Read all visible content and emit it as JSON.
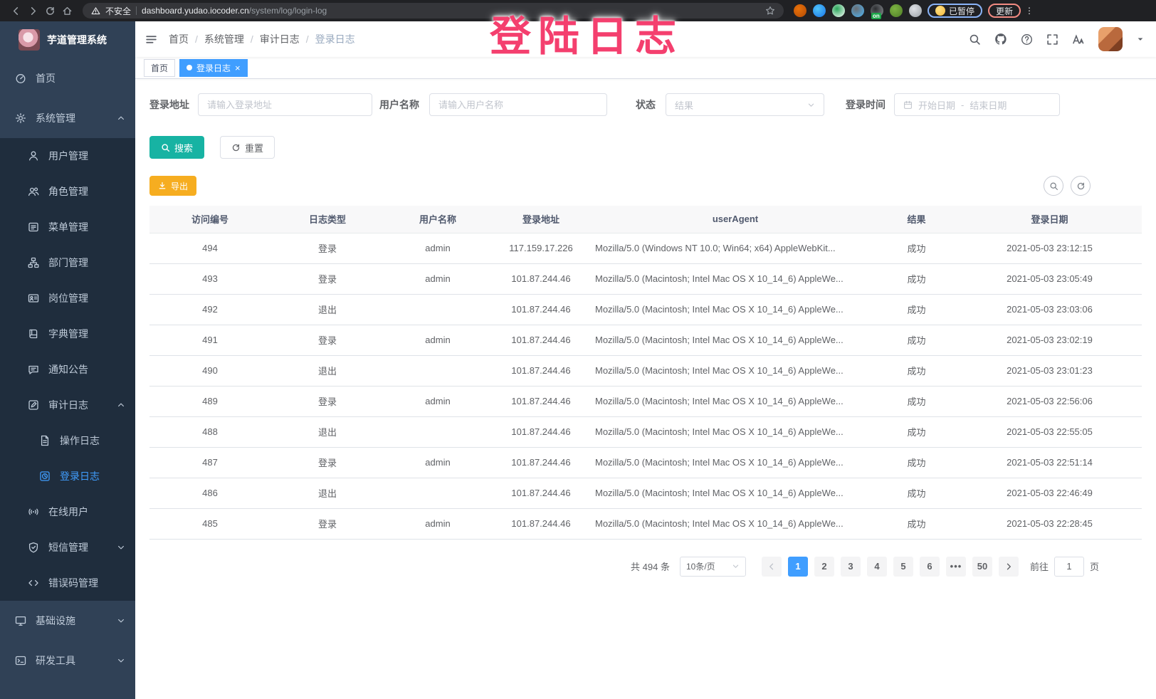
{
  "browser": {
    "security_label": "不安全",
    "url_domain": "dashboard.yudao.iocoder.cn",
    "url_path": "/system/log/login-log",
    "extensions": [
      {
        "name": "extension-orange-icon",
        "color": "#e8710a",
        "inner": "#b24b05"
      },
      {
        "name": "extension-blue-gem-icon",
        "color": "#4fc3f7",
        "inner": "#1a73e8"
      },
      {
        "name": "extension-green-check-icon",
        "color": "#2aa75a",
        "inner": "#ffffff"
      },
      {
        "name": "extension-grid-icon",
        "color": "#6a6d72",
        "inner": "#4db6f7"
      },
      {
        "name": "extension-list-on-icon",
        "color": "#2b2d30",
        "inner": "#8f9398",
        "badge": "on"
      },
      {
        "name": "extension-sprout-icon",
        "color": "#7cb342",
        "inner": "#4f7d27"
      },
      {
        "name": "extension-puzzle-icon",
        "color": "#dfe1e5",
        "inner": "#9aa0a6"
      }
    ],
    "profile_status": "已暂停",
    "update_label": "更新"
  },
  "overlay_text": "登陆日志",
  "sidebar": {
    "title": "芋道管理系统",
    "items": [
      {
        "name": "home",
        "label": "首页",
        "icon": "dashboard-icon",
        "level": 0
      },
      {
        "name": "system-management",
        "label": "系统管理",
        "icon": "gear-icon",
        "level": 0,
        "chevron": "up"
      },
      {
        "name": "user-management",
        "label": "用户管理",
        "icon": "user-icon",
        "level": 1,
        "submenu": true
      },
      {
        "name": "role-management",
        "label": "角色管理",
        "icon": "users-icon",
        "level": 1,
        "submenu": true
      },
      {
        "name": "menu-management",
        "label": "菜单管理",
        "icon": "menu-list-icon",
        "level": 1,
        "submenu": true
      },
      {
        "name": "dept-management",
        "label": "部门管理",
        "icon": "org-tree-icon",
        "level": 1,
        "submenu": true
      },
      {
        "name": "post-management",
        "label": "岗位管理",
        "icon": "id-card-icon",
        "level": 1,
        "submenu": true
      },
      {
        "name": "dict-management",
        "label": "字典管理",
        "icon": "book-icon",
        "level": 1,
        "submenu": true
      },
      {
        "name": "notice-announcement",
        "label": "通知公告",
        "icon": "announcement-icon",
        "level": 1,
        "submenu": true
      },
      {
        "name": "audit-log",
        "label": "审计日志",
        "icon": "edit-square-icon",
        "level": 1,
        "submenu": true,
        "chevron": "up"
      },
      {
        "name": "operation-log",
        "label": "操作日志",
        "icon": "document-icon",
        "level": 2,
        "submenu": true
      },
      {
        "name": "login-log",
        "label": "登录日志",
        "icon": "clock-square-icon",
        "level": 2,
        "submenu": true,
        "active": true
      },
      {
        "name": "online-users",
        "label": "在线用户",
        "icon": "broadcast-icon",
        "level": 1,
        "submenu": true
      },
      {
        "name": "sms-management",
        "label": "短信管理",
        "icon": "shield-check-icon",
        "level": 1,
        "submenu": true,
        "chevron": "down"
      },
      {
        "name": "error-code-management",
        "label": "错误码管理",
        "icon": "code-icon",
        "level": 1,
        "submenu": true
      },
      {
        "name": "infrastructure",
        "label": "基础设施",
        "icon": "monitor-icon",
        "level": 0,
        "chevron": "down"
      },
      {
        "name": "dev-tools",
        "label": "研发工具",
        "icon": "terminal-icon",
        "level": 0,
        "chevron": "down"
      }
    ]
  },
  "breadcrumb": [
    "首页",
    "系统管理",
    "审计日志",
    "登录日志"
  ],
  "tags": [
    {
      "label": "首页",
      "active": false,
      "closable": false
    },
    {
      "label": "登录日志",
      "active": true,
      "closable": true
    }
  ],
  "filters": {
    "login_address_label": "登录地址",
    "login_address_placeholder": "请输入登录地址",
    "username_label": "用户名称",
    "username_placeholder": "请输入用户名称",
    "status_label": "状态",
    "status_placeholder": "结果",
    "login_time_label": "登录时间",
    "start_placeholder": "开始日期",
    "range_separator": "-",
    "end_placeholder": "结束日期",
    "search_label": "搜索",
    "reset_label": "重置"
  },
  "toolbar": {
    "export_label": "导出"
  },
  "table": {
    "headers": [
      "访问编号",
      "日志类型",
      "用户名称",
      "登录地址",
      "userAgent",
      "结果",
      "登录日期"
    ],
    "rows": [
      [
        "494",
        "登录",
        "admin",
        "117.159.17.226",
        "Mozilla/5.0 (Windows NT 10.0; Win64; x64) AppleWebKit...",
        "成功",
        "2021-05-03 23:12:15"
      ],
      [
        "493",
        "登录",
        "admin",
        "101.87.244.46",
        "Mozilla/5.0 (Macintosh; Intel Mac OS X 10_14_6) AppleWe...",
        "成功",
        "2021-05-03 23:05:49"
      ],
      [
        "492",
        "退出",
        "",
        "101.87.244.46",
        "Mozilla/5.0 (Macintosh; Intel Mac OS X 10_14_6) AppleWe...",
        "成功",
        "2021-05-03 23:03:06"
      ],
      [
        "491",
        "登录",
        "admin",
        "101.87.244.46",
        "Mozilla/5.0 (Macintosh; Intel Mac OS X 10_14_6) AppleWe...",
        "成功",
        "2021-05-03 23:02:19"
      ],
      [
        "490",
        "退出",
        "",
        "101.87.244.46",
        "Mozilla/5.0 (Macintosh; Intel Mac OS X 10_14_6) AppleWe...",
        "成功",
        "2021-05-03 23:01:23"
      ],
      [
        "489",
        "登录",
        "admin",
        "101.87.244.46",
        "Mozilla/5.0 (Macintosh; Intel Mac OS X 10_14_6) AppleWe...",
        "成功",
        "2021-05-03 22:56:06"
      ],
      [
        "488",
        "退出",
        "",
        "101.87.244.46",
        "Mozilla/5.0 (Macintosh; Intel Mac OS X 10_14_6) AppleWe...",
        "成功",
        "2021-05-03 22:55:05"
      ],
      [
        "487",
        "登录",
        "admin",
        "101.87.244.46",
        "Mozilla/5.0 (Macintosh; Intel Mac OS X 10_14_6) AppleWe...",
        "成功",
        "2021-05-03 22:51:14"
      ],
      [
        "486",
        "退出",
        "",
        "101.87.244.46",
        "Mozilla/5.0 (Macintosh; Intel Mac OS X 10_14_6) AppleWe...",
        "成功",
        "2021-05-03 22:46:49"
      ],
      [
        "485",
        "登录",
        "admin",
        "101.87.244.46",
        "Mozilla/5.0 (Macintosh; Intel Mac OS X 10_14_6) AppleWe...",
        "成功",
        "2021-05-03 22:28:45"
      ]
    ]
  },
  "pagination": {
    "total_text": "共 494 条",
    "page_size": "10条/页",
    "pages": [
      "1",
      "2",
      "3",
      "4",
      "5",
      "6",
      "•••",
      "50"
    ],
    "active_page": "1",
    "goto_label": "前往",
    "goto_value": "1",
    "goto_suffix": "页"
  },
  "colors": {
    "accent": "#409eff",
    "sidebar_bg": "#304156",
    "submenu_bg": "#1f2d3d",
    "search_button": "#17b3a3",
    "export_button": "#f6ad20",
    "overlay_pink": "#f43f6e"
  }
}
